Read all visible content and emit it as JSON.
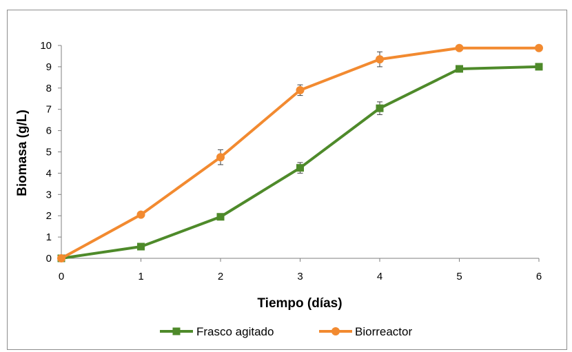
{
  "chart_data": {
    "type": "line",
    "title": "",
    "xlabel": "Tiempo (días)",
    "ylabel": "Biomasa (g/L)",
    "x": [
      0,
      1,
      2,
      3,
      4,
      5,
      6
    ],
    "xlim": [
      0,
      6
    ],
    "ylim": [
      0,
      10
    ],
    "x_ticks": [
      "0",
      "1",
      "2",
      "3",
      "4",
      "5",
      "6"
    ],
    "y_ticks": [
      "0",
      "1",
      "2",
      "3",
      "4",
      "5",
      "6",
      "7",
      "8",
      "9",
      "10"
    ],
    "grid": false,
    "legend_position": "bottom",
    "series": [
      {
        "name": "Frasco agitado",
        "color": "#4e8a2a",
        "marker": "square",
        "values": [
          0,
          0.55,
          1.95,
          4.25,
          7.05,
          8.9,
          9.0
        ],
        "error": [
          0,
          0,
          0,
          0.25,
          0.3,
          0.1,
          0.1
        ]
      },
      {
        "name": "Biorreactor",
        "color": "#f28a30",
        "marker": "circle",
        "values": [
          0,
          2.05,
          4.75,
          7.9,
          9.35,
          9.88,
          9.88
        ],
        "error": [
          0,
          0,
          0.35,
          0.25,
          0.35,
          0.05,
          0.05
        ]
      }
    ]
  }
}
